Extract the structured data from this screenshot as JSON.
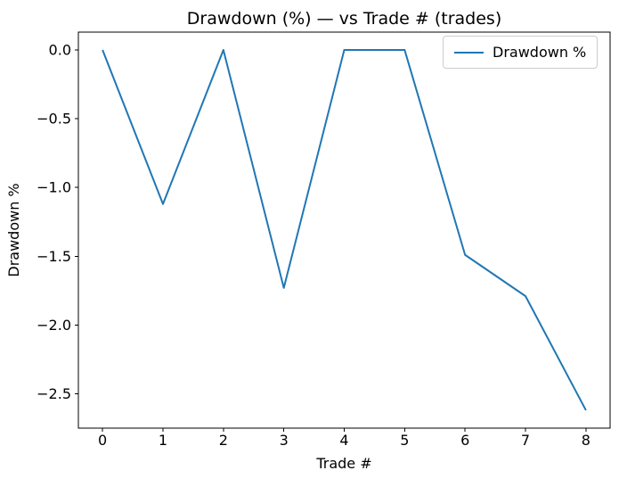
{
  "figure": {
    "title": "Drawdown (%) — vs Trade # (trades)",
    "xlabel": "Trade #",
    "ylabel": "Drawdown %",
    "legend_label": "Drawdown %",
    "colors": {
      "line": "#1f77b4",
      "spine": "#000000",
      "legend_border": "#cccccc",
      "background": "#ffffff"
    }
  },
  "chart_data": {
    "type": "line",
    "title": "Drawdown (%) — vs Trade # (trades)",
    "xlabel": "Trade #",
    "ylabel": "Drawdown %",
    "x": [
      0,
      1,
      2,
      3,
      4,
      5,
      6,
      7,
      8
    ],
    "series": [
      {
        "name": "Drawdown %",
        "color": "#1f77b4",
        "values": [
          0.0,
          -1.12,
          0.0,
          -1.73,
          0.0,
          0.0,
          -1.49,
          -1.79,
          -2.62
        ]
      }
    ],
    "xlim": [
      -0.4,
      8.4
    ],
    "ylim": [
      -2.75,
      0.13
    ],
    "xticks": {
      "values": [
        0,
        1,
        2,
        3,
        4,
        5,
        6,
        7,
        8
      ],
      "labels": [
        "0",
        "1",
        "2",
        "3",
        "4",
        "5",
        "6",
        "7",
        "8"
      ]
    },
    "yticks": {
      "values": [
        0.0,
        -0.5,
        -1.0,
        -1.5,
        -2.0,
        -2.5
      ],
      "labels": [
        "0.0",
        "−0.5",
        "−1.0",
        "−1.5",
        "−2.0",
        "−2.5"
      ]
    },
    "grid": false,
    "legend_position": "upper right"
  }
}
